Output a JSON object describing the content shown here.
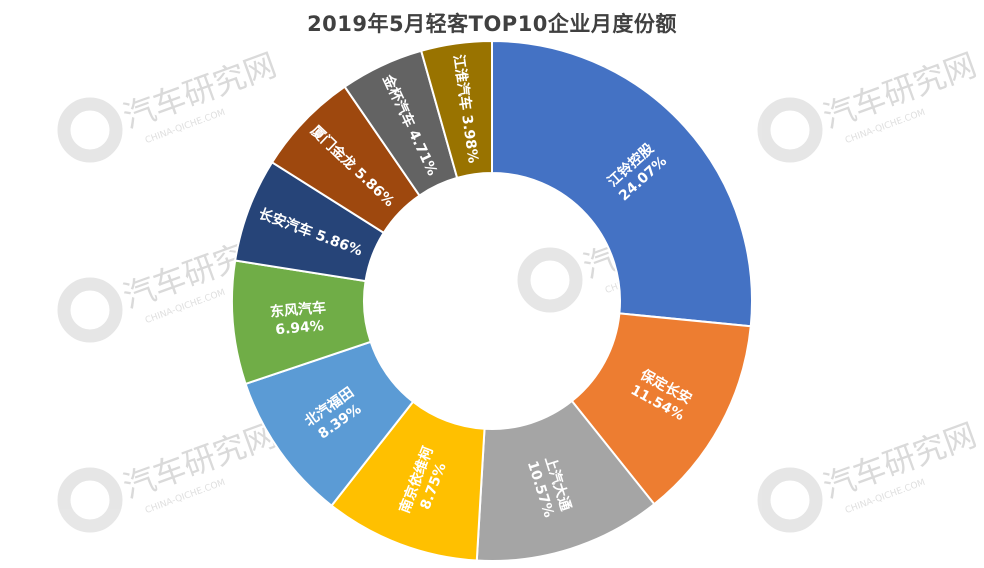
{
  "chart_data": {
    "type": "pie",
    "title": "2019年5月轻客TOP10企业月度份额",
    "categories": [
      "江铃控股",
      "保定长安",
      "上汽大通",
      "南京依维柯",
      "北汽福田",
      "东风汽车",
      "长安汽车",
      "厦门金龙",
      "金杯汽车",
      "江淮汽车"
    ],
    "values": [
      24.07,
      11.54,
      10.57,
      8.75,
      8.39,
      6.94,
      5.86,
      5.86,
      4.71,
      3.98
    ],
    "labels": [
      "24.07%",
      "11.54%",
      "10.57%",
      "8.75%",
      "8.39%",
      "6.94%",
      "5.86%",
      "5.86%",
      "4.71%",
      "3.98%"
    ],
    "colors": [
      "#4472C4",
      "#ED7D31",
      "#A5A5A5",
      "#FFC000",
      "#5B9BD5",
      "#70AD47",
      "#264478",
      "#9E480E",
      "#636363",
      "#997300"
    ],
    "donut": true,
    "legend": "none"
  },
  "watermark": {
    "text": "汽车研究网",
    "sub": "CHINA-QICHE.COM"
  }
}
